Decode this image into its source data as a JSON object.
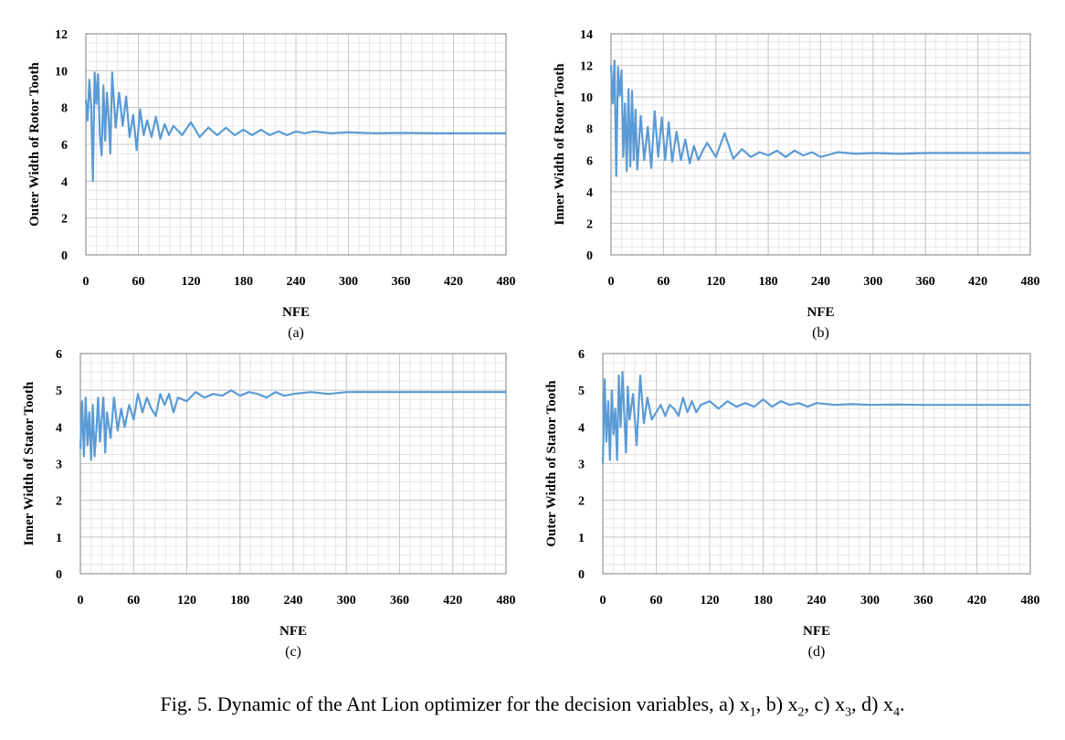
{
  "caption": {
    "text": "Fig. 5.  Dynamic of the Ant Lion optimizer for the decision variables, a) x",
    "v1": "1",
    "s1": ", b) x",
    "v2": "2",
    "s2": ", c) x",
    "v3": "3",
    "s3": ", d) x",
    "v4": "4",
    "s4": "."
  },
  "chart_data": [
    {
      "type": "line",
      "panel_label": "(a)",
      "xlabel": "NFE",
      "ylabel": "Outer Width of Rotor Tooth",
      "xlim": [
        0,
        480
      ],
      "ylim": [
        0,
        12
      ],
      "xticks": [
        0,
        60,
        120,
        180,
        240,
        300,
        360,
        420,
        480
      ],
      "yticks": [
        0,
        2,
        4,
        6,
        8,
        10,
        12
      ],
      "grid": true,
      "color": "#5b9bd5",
      "x": [
        0,
        2,
        4,
        6,
        8,
        10,
        12,
        14,
        16,
        18,
        20,
        22,
        24,
        26,
        28,
        30,
        34,
        38,
        42,
        46,
        50,
        54,
        58,
        62,
        66,
        70,
        75,
        80,
        85,
        90,
        95,
        100,
        110,
        120,
        130,
        140,
        150,
        160,
        170,
        180,
        190,
        200,
        210,
        220,
        230,
        240,
        250,
        260,
        280,
        300,
        330,
        360,
        400,
        440,
        480
      ],
      "values": [
        8.4,
        7.3,
        9.5,
        8.1,
        4.0,
        9.9,
        8.2,
        9.8,
        6.5,
        5.4,
        9.2,
        6.2,
        8.8,
        7.5,
        5.5,
        9.9,
        6.9,
        8.8,
        7.0,
        8.6,
        6.4,
        7.6,
        5.7,
        7.9,
        6.5,
        7.3,
        6.4,
        7.5,
        6.3,
        7.1,
        6.5,
        7.0,
        6.5,
        7.2,
        6.4,
        6.9,
        6.5,
        6.9,
        6.5,
        6.8,
        6.5,
        6.8,
        6.5,
        6.7,
        6.5,
        6.7,
        6.6,
        6.7,
        6.6,
        6.65,
        6.6,
        6.62,
        6.6,
        6.6,
        6.6
      ]
    },
    {
      "type": "line",
      "panel_label": "(b)",
      "xlabel": "NFE",
      "ylabel": "Inner Width of Rotor Tooth",
      "xlim": [
        0,
        480
      ],
      "ylim": [
        0,
        14
      ],
      "xticks": [
        0,
        60,
        120,
        180,
        240,
        300,
        360,
        420,
        480
      ],
      "yticks": [
        0,
        2,
        4,
        6,
        8,
        10,
        12,
        14
      ],
      "grid": true,
      "color": "#5b9bd5",
      "x": [
        0,
        2,
        4,
        6,
        8,
        10,
        12,
        14,
        16,
        18,
        20,
        22,
        24,
        26,
        28,
        30,
        34,
        38,
        42,
        46,
        50,
        54,
        58,
        62,
        66,
        70,
        75,
        80,
        85,
        90,
        95,
        100,
        105,
        110,
        120,
        130,
        140,
        150,
        160,
        170,
        180,
        190,
        200,
        210,
        220,
        230,
        240,
        260,
        280,
        300,
        330,
        360,
        400,
        440,
        480
      ],
      "values": [
        12.0,
        9.6,
        12.3,
        5.0,
        11.9,
        10.1,
        11.7,
        6.2,
        9.6,
        5.3,
        10.5,
        5.6,
        10.4,
        6.0,
        9.2,
        5.4,
        8.8,
        6.0,
        8.1,
        5.5,
        9.1,
        6.2,
        8.7,
        6.0,
        8.4,
        5.9,
        7.8,
        6.0,
        7.3,
        5.8,
        6.9,
        6.0,
        6.6,
        7.1,
        6.2,
        7.7,
        6.1,
        6.7,
        6.2,
        6.5,
        6.3,
        6.6,
        6.2,
        6.6,
        6.3,
        6.5,
        6.2,
        6.5,
        6.4,
        6.45,
        6.4,
        6.45,
        6.45,
        6.45,
        6.45
      ]
    },
    {
      "type": "line",
      "panel_label": "(c)",
      "xlabel": "NFE",
      "ylabel": "Inner Width of Stator Tooth",
      "xlim": [
        0,
        480
      ],
      "ylim": [
        0,
        6
      ],
      "xticks": [
        0,
        60,
        120,
        180,
        240,
        300,
        360,
        420,
        480
      ],
      "yticks": [
        0,
        1,
        2,
        3,
        4,
        5,
        6
      ],
      "grid": true,
      "color": "#5b9bd5",
      "x": [
        0,
        2,
        4,
        6,
        8,
        10,
        12,
        14,
        16,
        18,
        20,
        22,
        24,
        26,
        28,
        30,
        34,
        38,
        42,
        46,
        50,
        55,
        60,
        65,
        70,
        75,
        80,
        85,
        90,
        95,
        100,
        105,
        110,
        120,
        130,
        140,
        150,
        160,
        170,
        180,
        190,
        200,
        210,
        220,
        230,
        240,
        260,
        280,
        300,
        330,
        360,
        400,
        440,
        480
      ],
      "values": [
        3.4,
        4.7,
        3.2,
        4.8,
        3.5,
        4.4,
        3.1,
        4.6,
        3.2,
        3.9,
        4.8,
        3.6,
        4.2,
        4.8,
        3.3,
        4.4,
        3.7,
        4.8,
        3.9,
        4.5,
        4.0,
        4.6,
        4.2,
        4.9,
        4.4,
        4.8,
        4.5,
        4.3,
        4.9,
        4.6,
        4.9,
        4.4,
        4.8,
        4.7,
        4.95,
        4.8,
        4.9,
        4.85,
        5.0,
        4.85,
        4.95,
        4.9,
        4.8,
        4.95,
        4.85,
        4.9,
        4.95,
        4.9,
        4.95,
        4.95,
        4.95,
        4.95,
        4.95,
        4.95
      ]
    },
    {
      "type": "line",
      "panel_label": "(d)",
      "xlabel": "NFE",
      "ylabel": "Outer Width of Stator Tooth",
      "xlim": [
        0,
        480
      ],
      "ylim": [
        0,
        6
      ],
      "xticks": [
        0,
        60,
        120,
        180,
        240,
        300,
        360,
        420,
        480
      ],
      "yticks": [
        0,
        1,
        2,
        3,
        4,
        5,
        6
      ],
      "grid": true,
      "color": "#5b9bd5",
      "x": [
        0,
        2,
        4,
        6,
        8,
        10,
        12,
        14,
        16,
        18,
        20,
        22,
        24,
        26,
        28,
        30,
        34,
        38,
        42,
        46,
        50,
        55,
        60,
        65,
        70,
        75,
        80,
        85,
        90,
        95,
        100,
        105,
        110,
        120,
        130,
        140,
        150,
        160,
        170,
        180,
        190,
        200,
        210,
        220,
        230,
        240,
        260,
        280,
        300,
        330,
        360,
        400,
        440,
        480
      ],
      "values": [
        3.0,
        5.3,
        3.6,
        4.7,
        3.1,
        5.0,
        3.8,
        4.5,
        3.1,
        5.4,
        4.0,
        5.5,
        4.4,
        3.3,
        5.1,
        4.2,
        4.9,
        3.5,
        5.4,
        4.1,
        4.8,
        4.2,
        4.4,
        4.6,
        4.3,
        4.6,
        4.5,
        4.3,
        4.8,
        4.4,
        4.7,
        4.4,
        4.6,
        4.7,
        4.5,
        4.7,
        4.55,
        4.65,
        4.55,
        4.75,
        4.55,
        4.7,
        4.6,
        4.65,
        4.55,
        4.65,
        4.6,
        4.62,
        4.6,
        4.61,
        4.6,
        4.6,
        4.6,
        4.6
      ]
    }
  ]
}
